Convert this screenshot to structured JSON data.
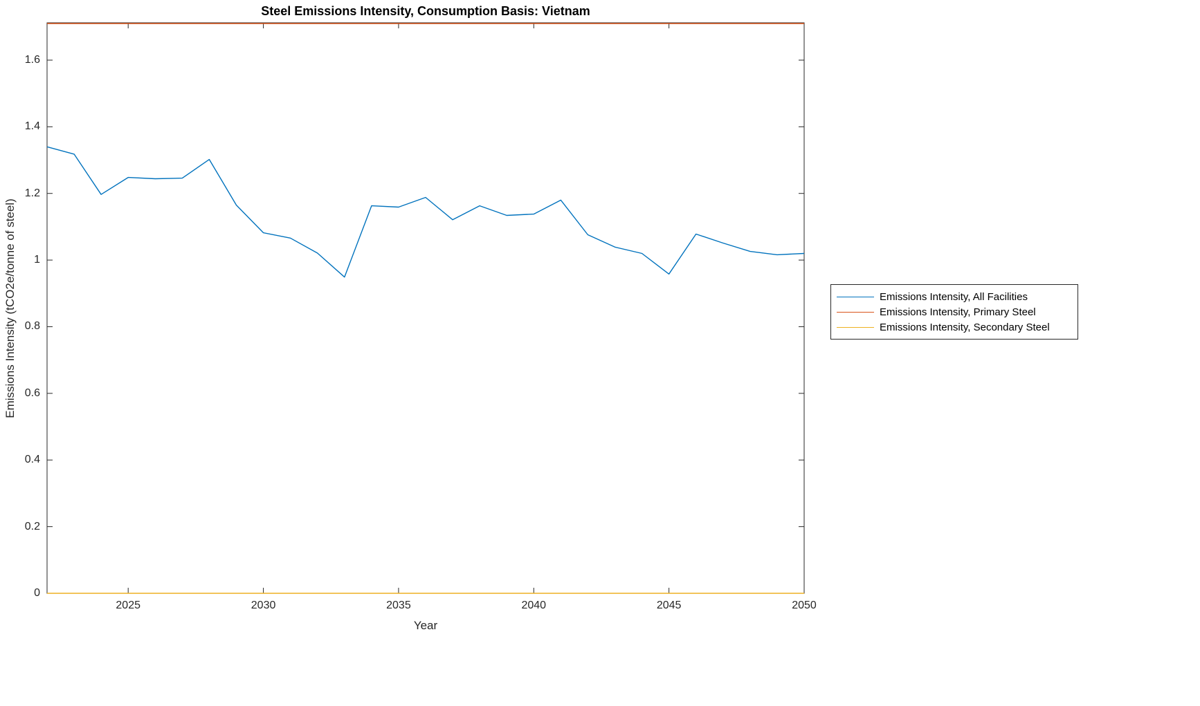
{
  "chart_data": {
    "type": "line",
    "title": "Steel Emissions Intensity, Consumption Basis: Vietnam",
    "xlabel": "Year",
    "ylabel": "Emissions Intensity (tCO2e/tonne of steel)",
    "xlim": [
      2022,
      2050
    ],
    "ylim": [
      0,
      1.712
    ],
    "xticks": [
      2025,
      2030,
      2035,
      2040,
      2045,
      2050
    ],
    "xtick_labels": [
      "2025",
      "2030",
      "2035",
      "2040",
      "2045",
      "2050"
    ],
    "yticks": [
      0,
      0.2,
      0.4,
      0.6,
      0.8,
      1.0,
      1.2,
      1.4,
      1.6
    ],
    "ytick_labels": [
      "0",
      "0.2",
      "0.4",
      "0.6",
      "0.8",
      "1",
      "1.2",
      "1.4",
      "1.6"
    ],
    "grid": false,
    "legend_position": "right-outside",
    "x": [
      2022,
      2023,
      2024,
      2025,
      2026,
      2027,
      2028,
      2029,
      2030,
      2031,
      2032,
      2033,
      2034,
      2035,
      2036,
      2037,
      2038,
      2039,
      2040,
      2041,
      2042,
      2043,
      2044,
      2045,
      2046,
      2047,
      2048,
      2049,
      2050
    ],
    "series": [
      {
        "name": "Emissions Intensity, All Facilities",
        "color": "#0072BD",
        "values": [
          1.34,
          1.318,
          1.197,
          1.248,
          1.244,
          1.246,
          1.302,
          1.165,
          1.082,
          1.066,
          1.021,
          0.949,
          1.163,
          1.159,
          1.188,
          1.121,
          1.163,
          1.134,
          1.138,
          1.18,
          1.076,
          1.039,
          1.02,
          0.958,
          1.078,
          1.051,
          1.026,
          1.016,
          1.02
        ]
      },
      {
        "name": "Emissions Intensity, Primary Steel",
        "color": "#D95319",
        "values": [
          1.71,
          1.71,
          1.71,
          1.71,
          1.71,
          1.71,
          1.71,
          1.71,
          1.71,
          1.71,
          1.71,
          1.71,
          1.71,
          1.71,
          1.71,
          1.71,
          1.71,
          1.71,
          1.71,
          1.71,
          1.71,
          1.71,
          1.71,
          1.71,
          1.71,
          1.71,
          1.71,
          1.71,
          1.71
        ]
      },
      {
        "name": "Emissions Intensity, Secondary Steel",
        "color": "#EDB120",
        "values": [
          0,
          0,
          0,
          0,
          0,
          0,
          0,
          0,
          0,
          0,
          0,
          0,
          0,
          0,
          0,
          0,
          0,
          0,
          0,
          0,
          0,
          0,
          0,
          0,
          0,
          0,
          0,
          0,
          0
        ]
      }
    ],
    "axis_color": "#262626"
  }
}
